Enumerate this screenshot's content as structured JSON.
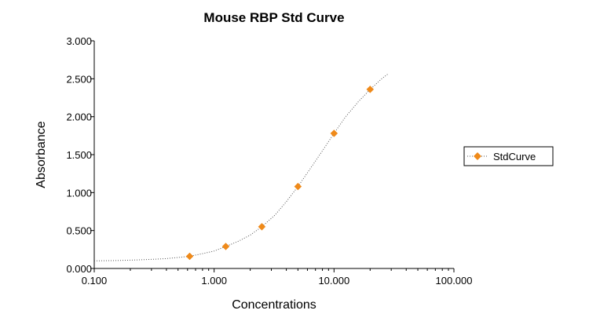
{
  "chart_data": {
    "type": "scatter",
    "title": "Mouse RBP Std Curve",
    "xlabel": "Concentrations",
    "ylabel": "Absorbance",
    "x_scale": "log",
    "xlim": [
      0.1,
      100
    ],
    "ylim": [
      0,
      3
    ],
    "x_ticks": [
      "0.100",
      "1.000",
      "10.000",
      "100.000"
    ],
    "y_ticks": [
      "0.000",
      "0.500",
      "1.000",
      "1.500",
      "2.000",
      "2.500",
      "3.000"
    ],
    "grid": false,
    "legend_position": "right",
    "series": [
      {
        "name": "StdCurve",
        "color": "#ef8a1a",
        "marker": "diamond",
        "x": [
          0.625,
          1.25,
          2.5,
          5,
          10,
          20
        ],
        "y": [
          0.16,
          0.29,
          0.55,
          1.08,
          1.78,
          2.36
        ]
      }
    ],
    "fit_curve": {
      "style": "dotted",
      "color": "#555555",
      "x": [
        0.1,
        0.15,
        0.2,
        0.3,
        0.4,
        0.5,
        0.625,
        0.8,
        1.0,
        1.25,
        1.6,
        2.0,
        2.5,
        3.2,
        4.0,
        5.0,
        6.3,
        8.0,
        10.0,
        12.5,
        16.0,
        20.0,
        25.0,
        28.0
      ],
      "y": [
        0.1,
        0.105,
        0.11,
        0.12,
        0.13,
        0.145,
        0.16,
        0.195,
        0.23,
        0.29,
        0.36,
        0.44,
        0.55,
        0.7,
        0.88,
        1.08,
        1.31,
        1.55,
        1.78,
        2.0,
        2.2,
        2.36,
        2.5,
        2.56
      ]
    }
  }
}
